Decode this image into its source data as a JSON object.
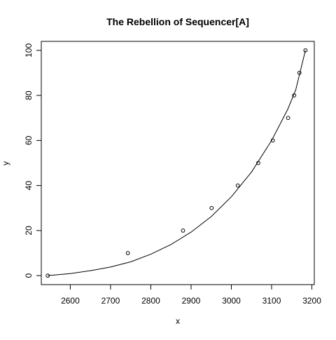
{
  "chart_data": {
    "type": "scatter",
    "title": "The Rebellion of Sequencer[A]",
    "xlabel": "x",
    "ylabel": "y",
    "xlim": [
      2528,
      3206
    ],
    "ylim": [
      -4,
      104
    ],
    "x_ticks": [
      2600,
      2700,
      2800,
      2900,
      3000,
      3100,
      3200
    ],
    "y_ticks": [
      0,
      20,
      40,
      60,
      80,
      100
    ],
    "grid": false,
    "legend": "none",
    "points": [
      {
        "x": 2544,
        "y": 0
      },
      {
        "x": 2743,
        "y": 10
      },
      {
        "x": 2880,
        "y": 20
      },
      {
        "x": 2951,
        "y": 30
      },
      {
        "x": 3016,
        "y": 40
      },
      {
        "x": 3067,
        "y": 50
      },
      {
        "x": 3103,
        "y": 60
      },
      {
        "x": 3141,
        "y": 70
      },
      {
        "x": 3156,
        "y": 80
      },
      {
        "x": 3169,
        "y": 90
      },
      {
        "x": 3184,
        "y": 100
      }
    ],
    "fit_curve": {
      "type": "exponential",
      "points": [
        {
          "x": 2544,
          "y": 0
        },
        {
          "x": 2600,
          "y": 0.9
        },
        {
          "x": 2650,
          "y": 2.2
        },
        {
          "x": 2700,
          "y": 3.8
        },
        {
          "x": 2750,
          "y": 6.1
        },
        {
          "x": 2800,
          "y": 9.5
        },
        {
          "x": 2850,
          "y": 13.8
        },
        {
          "x": 2900,
          "y": 19.3
        },
        {
          "x": 2950,
          "y": 26.2
        },
        {
          "x": 3000,
          "y": 35.0
        },
        {
          "x": 3050,
          "y": 46.0
        },
        {
          "x": 3100,
          "y": 60.0
        },
        {
          "x": 3140,
          "y": 73.8
        },
        {
          "x": 3160,
          "y": 82.5
        },
        {
          "x": 3184,
          "y": 100
        }
      ]
    }
  }
}
